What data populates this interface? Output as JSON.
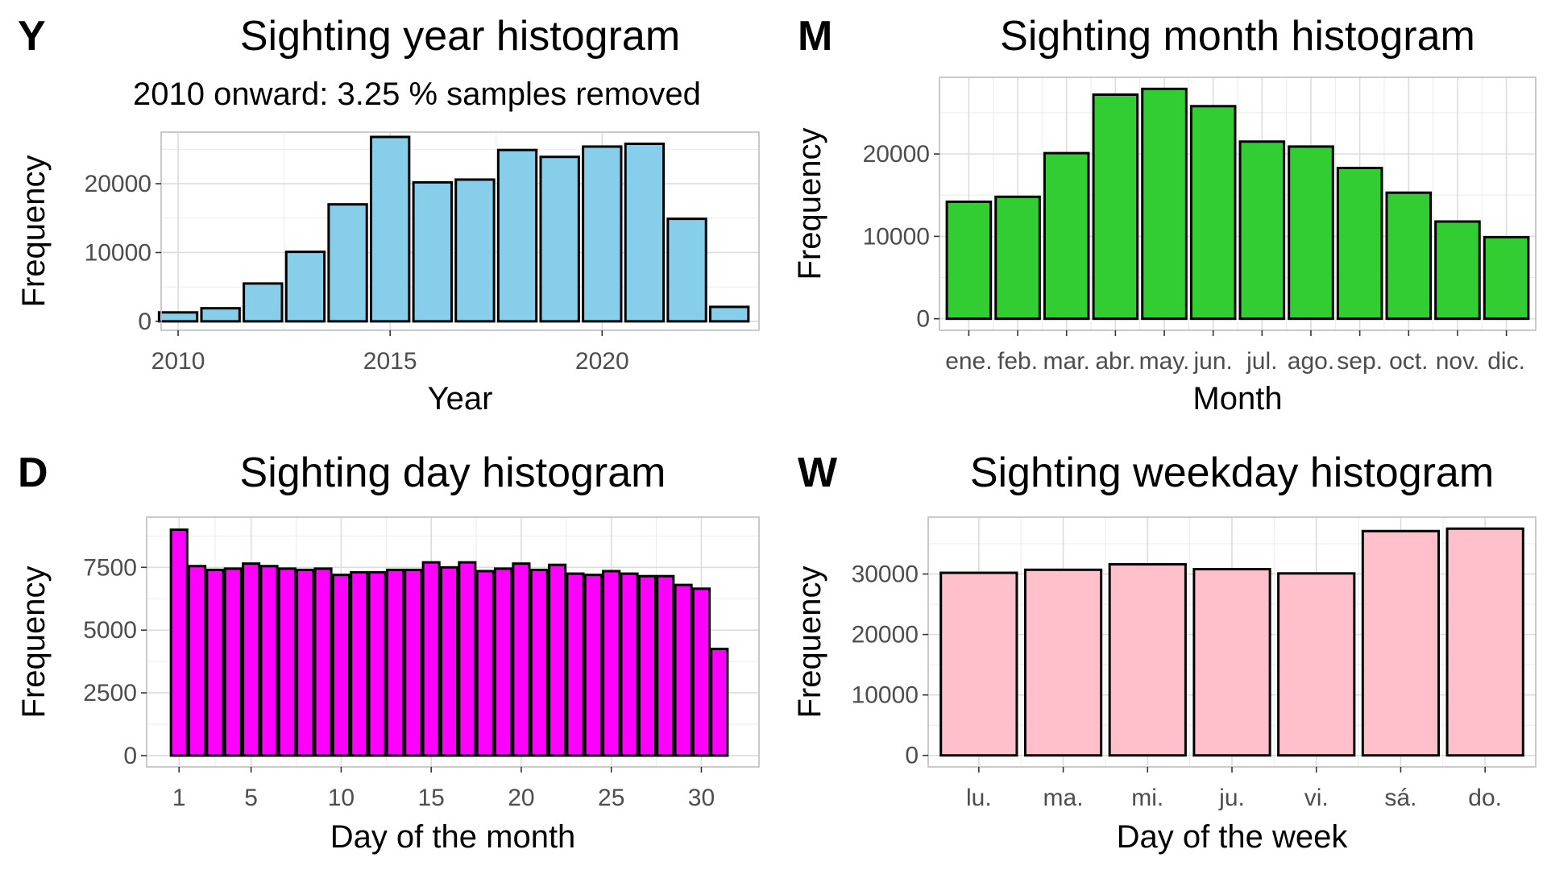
{
  "chart_data": [
    {
      "tag": "Y",
      "type": "bar",
      "title": "Sighting year histogram",
      "subtitle": "2010 onward: 3.25 % samples removed",
      "xlabel": "Year",
      "ylabel": "Frequency",
      "fill": "#87CEEB",
      "x": [
        2010,
        2011,
        2012,
        2013,
        2014,
        2015,
        2016,
        2017,
        2018,
        2019,
        2020,
        2021,
        2022,
        2023
      ],
      "values": [
        1300,
        1900,
        5500,
        10100,
        17000,
        26800,
        20200,
        20600,
        24900,
        23900,
        25400,
        25800,
        14900,
        2100
      ],
      "xlim": [
        2009.6,
        2023.7
      ],
      "ylim": [
        -1300,
        27500
      ],
      "xticks": [
        2010,
        2015,
        2020
      ],
      "xtick_labels": [
        "2010",
        "2015",
        "2020"
      ],
      "yticks": [
        0,
        10000,
        20000
      ],
      "ytick_labels": [
        "0",
        "10000",
        "20000"
      ]
    },
    {
      "tag": "M",
      "type": "bar",
      "title": "Sighting month histogram",
      "xlabel": "Month",
      "ylabel": "Frequency",
      "fill": "#32CD32",
      "x": [
        1,
        2,
        3,
        4,
        5,
        6,
        7,
        8,
        9,
        10,
        11,
        12
      ],
      "values": [
        14200,
        14800,
        20100,
        27200,
        27900,
        25800,
        21500,
        20900,
        18300,
        15300,
        11800,
        9900
      ],
      "xlim": [
        0.4,
        12.6
      ],
      "ylim": [
        -1400,
        29300
      ],
      "xticks": [
        1,
        2,
        3,
        4,
        5,
        6,
        7,
        8,
        9,
        10,
        11,
        12
      ],
      "xtick_labels": [
        "ene.",
        "feb.",
        "mar.",
        "abr.",
        "may.",
        "jun.",
        "jul.",
        "ago.",
        "sep.",
        "oct.",
        "nov.",
        "dic."
      ],
      "yticks": [
        0,
        10000,
        20000
      ],
      "ytick_labels": [
        "0",
        "10000",
        "20000"
      ]
    },
    {
      "tag": "D",
      "type": "bar",
      "title": "Sighting day histogram",
      "xlabel": "Day of the month",
      "ylabel": "Frequency",
      "fill": "#FF00FF",
      "x": [
        1,
        2,
        3,
        4,
        5,
        6,
        7,
        8,
        9,
        10,
        11,
        12,
        13,
        14,
        15,
        16,
        17,
        18,
        19,
        20,
        21,
        22,
        23,
        24,
        25,
        26,
        27,
        28,
        29,
        30,
        31
      ],
      "values": [
        9000,
        7550,
        7400,
        7450,
        7650,
        7550,
        7450,
        7400,
        7450,
        7200,
        7300,
        7300,
        7400,
        7400,
        7700,
        7500,
        7700,
        7350,
        7450,
        7650,
        7400,
        7600,
        7250,
        7200,
        7350,
        7250,
        7150,
        7150,
        6800,
        6650,
        4250
      ],
      "xlim": [
        -0.8,
        33.2
      ],
      "ylim": [
        -450,
        9500
      ],
      "xticks": [
        1,
        5,
        10,
        15,
        20,
        25,
        30
      ],
      "xtick_labels": [
        "1",
        "5",
        "10",
        "15",
        "20",
        "25",
        "30"
      ],
      "yticks": [
        0,
        2500,
        5000,
        7500
      ],
      "ytick_labels": [
        "0",
        "2500",
        "5000",
        "7500"
      ]
    },
    {
      "tag": "W",
      "type": "bar",
      "title": "Sighting weekday histogram",
      "xlabel": "Day of the week",
      "ylabel": "Frequency",
      "fill": "#FFC0CB",
      "x": [
        1,
        2,
        3,
        4,
        5,
        6,
        7
      ],
      "values": [
        30200,
        30700,
        31600,
        30800,
        30100,
        37100,
        37500
      ],
      "xlim": [
        0.4,
        7.6
      ],
      "ylim": [
        -1900,
        39400
      ],
      "xticks": [
        1,
        2,
        3,
        4,
        5,
        6,
        7
      ],
      "xtick_labels": [
        "lu.",
        "ma.",
        "mi.",
        "ju.",
        "vi.",
        "sá.",
        "do."
      ],
      "yticks": [
        0,
        10000,
        20000,
        30000
      ],
      "ytick_labels": [
        "0",
        "10000",
        "20000",
        "30000"
      ]
    }
  ]
}
